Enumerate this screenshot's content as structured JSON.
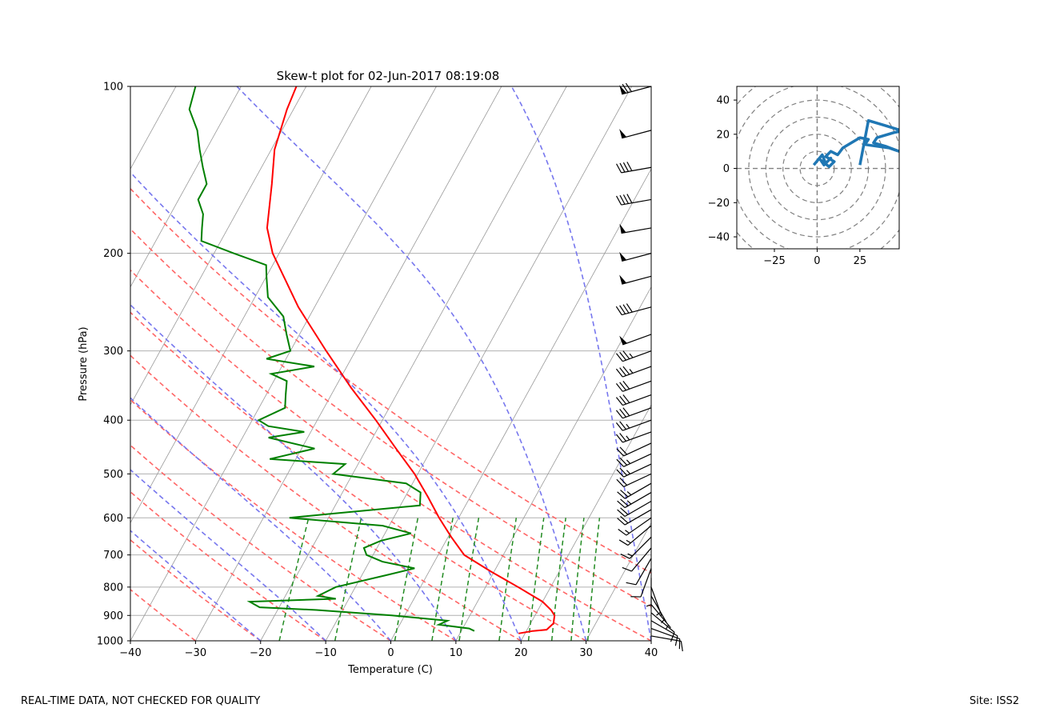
{
  "colors": {
    "temperature": "#ff0000",
    "dewpoint": "#008000",
    "dry_adiabat": "#ff6666",
    "moist_adiabat": "#7777ee",
    "mixing_ratio": "#228b22",
    "isotherm": "#999999",
    "hodograph": "#1f77b4",
    "barb": "#000000",
    "ring": "#808080"
  },
  "footer": {
    "disclaimer": "REAL-TIME DATA, NOT CHECKED FOR QUALITY",
    "site": "Site: ISS2"
  },
  "chart_data": [
    {
      "type": "line",
      "subtype": "skew-t",
      "title": "Skew-t plot for 02-Jun-2017 08:19:08",
      "xlabel": "Temperature (C)",
      "ylabel": "Pressure (hPa)",
      "xlim": [
        -40,
        40
      ],
      "ylim": [
        1000,
        100
      ],
      "x_ticks": [
        -40,
        -30,
        -20,
        -10,
        0,
        10,
        20,
        30,
        40
      ],
      "x_tick_labels": [
        "−40",
        "−30",
        "−20",
        "−10",
        "0",
        "10",
        "20",
        "30",
        "40"
      ],
      "y_ticks": [
        1000,
        900,
        800,
        700,
        600,
        500,
        400,
        300,
        200,
        100
      ],
      "y_tick_labels": [
        "1000",
        "900",
        "800",
        "700",
        "600",
        "500",
        "400",
        "300",
        "200",
        "100"
      ],
      "skew_degrees_per_decade": 47,
      "series": [
        {
          "name": "Temperature",
          "p": [
            970,
            960,
            955,
            930,
            900,
            880,
            850,
            800,
            750,
            700,
            650,
            600,
            550,
            500,
            450,
            400,
            350,
            300,
            250,
            200,
            180,
            150,
            130,
            110,
            100
          ],
          "t": [
            19,
            21,
            23,
            23.5,
            23,
            22,
            20,
            15,
            9.5,
            4,
            0.5,
            -3,
            -6.5,
            -10.5,
            -15.5,
            -21,
            -27.5,
            -34.5,
            -42.5,
            -51,
            -54,
            -57,
            -59.5,
            -61,
            -61.5
          ]
        },
        {
          "name": "Dewpoint",
          "p": [
            960,
            950,
            935,
            920,
            900,
            880,
            870,
            850,
            840,
            830,
            800,
            760,
            740,
            720,
            700,
            680,
            660,
            640,
            620,
            600,
            590,
            570,
            540,
            520,
            500,
            480,
            470,
            450,
            430,
            420,
            410,
            400,
            380,
            360,
            340,
            330,
            320,
            310,
            300,
            280,
            260,
            240,
            220,
            210,
            200,
            190,
            180,
            170,
            160,
            150,
            140,
            130,
            120,
            110,
            100
          ],
          "t": [
            12,
            11,
            6,
            7,
            -2,
            -14,
            -23,
            -25,
            -12,
            -15,
            -13,
            -6,
            -2.5,
            -8,
            -11,
            -12,
            -10,
            -6,
            -11,
            -26,
            -20,
            -7,
            -8,
            -11,
            -23,
            -22,
            -34,
            -28,
            -36,
            -31,
            -37,
            -39,
            -36,
            -37,
            -38,
            -41,
            -35,
            -43,
            -40,
            -42,
            -44,
            -48,
            -50,
            -51,
            -57,
            -63,
            -64,
            -65,
            -67,
            -67,
            -69,
            -71,
            -73,
            -76,
            -77
          ]
        }
      ],
      "wind_barbs": {
        "p": [
          100,
          120,
          140,
          160,
          180,
          200,
          220,
          250,
          280,
          300,
          320,
          340,
          360,
          380,
          400,
          420,
          440,
          460,
          480,
          500,
          520,
          540,
          560,
          580,
          600,
          620,
          650,
          680,
          710,
          740,
          770,
          800,
          830,
          860,
          890,
          920,
          950,
          980
        ],
        "speed_kt": [
          70,
          50,
          40,
          40,
          50,
          50,
          50,
          40,
          50,
          35,
          35,
          30,
          30,
          30,
          25,
          25,
          20,
          25,
          25,
          20,
          25,
          25,
          20,
          20,
          15,
          15,
          15,
          10,
          10,
          10,
          5,
          5,
          5,
          5,
          10,
          10,
          10,
          10
        ],
        "direction_deg": [
          255,
          255,
          260,
          260,
          260,
          255,
          255,
          255,
          250,
          250,
          250,
          250,
          250,
          250,
          250,
          250,
          245,
          245,
          245,
          245,
          240,
          240,
          240,
          240,
          235,
          230,
          225,
          220,
          210,
          200,
          180,
          160,
          150,
          140,
          130,
          120,
          110,
          100
        ]
      }
    },
    {
      "type": "line",
      "subtype": "hodograph",
      "xlim": [
        -47,
        48
      ],
      "ylim": [
        -47,
        48
      ],
      "x_ticks": [
        -25,
        0,
        25
      ],
      "x_tick_labels": [
        "−25",
        "0",
        "25"
      ],
      "y_ticks": [
        40,
        20,
        0,
        -20,
        -40
      ],
      "y_tick_labels": [
        "40",
        "20",
        "0",
        "−20",
        "−40"
      ],
      "rings": [
        10,
        20,
        30,
        40,
        50,
        60
      ],
      "u": [
        -2,
        3,
        5,
        8,
        4,
        2,
        7,
        10,
        5,
        8,
        12,
        15,
        20,
        25,
        30,
        28,
        35,
        42,
        45,
        48,
        40,
        33,
        35,
        45,
        50,
        40,
        30,
        25
      ],
      "v": [
        2,
        8,
        3,
        6,
        2,
        5,
        1,
        4,
        7,
        10,
        8,
        12,
        15,
        18,
        17,
        14,
        13,
        12,
        11,
        10,
        13,
        15,
        18,
        21,
        22,
        25,
        28,
        2
      ]
    }
  ]
}
